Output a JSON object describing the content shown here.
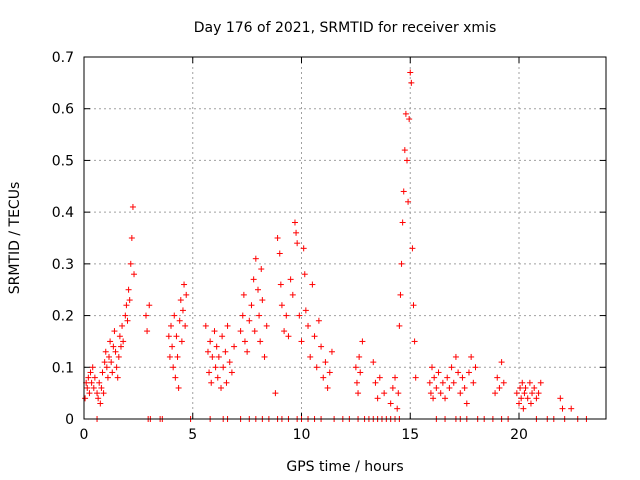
{
  "chart_data": {
    "type": "scatter",
    "title": "Day 176 of 2021, SRMTID for receiver xmis",
    "xlabel": "GPS time / hours",
    "ylabel": "SRMTID / TECUs",
    "xlim": [
      0,
      24
    ],
    "ylim": [
      0,
      0.7
    ],
    "xticks": [
      0,
      5,
      10,
      15,
      20
    ],
    "yticks": [
      0,
      0.1,
      0.2,
      0.3,
      0.4,
      0.5,
      0.6,
      0.7
    ],
    "xtick_labels": [
      "0",
      "5",
      "10",
      "15",
      "20"
    ],
    "ytick_labels": [
      "0",
      "0.1",
      "0.2",
      "0.3",
      "0.4",
      "0.5",
      "0.6",
      "0.7"
    ],
    "grid": true,
    "marker": "+",
    "color": "#ff0000",
    "series": [
      {
        "name": "SRMTID",
        "points": [
          [
            0.05,
            0.04
          ],
          [
            0.1,
            0.07
          ],
          [
            0.15,
            0.06
          ],
          [
            0.2,
            0.08
          ],
          [
            0.25,
            0.05
          ],
          [
            0.3,
            0.09
          ],
          [
            0.35,
            0.07
          ],
          [
            0.4,
            0.1
          ],
          [
            0.45,
            0.06
          ],
          [
            0.5,
            0.08
          ],
          [
            0.6,
            0.05
          ],
          [
            0.65,
            0.04
          ],
          [
            0.7,
            0.07
          ],
          [
            0.75,
            0.03
          ],
          [
            0.8,
            0.06
          ],
          [
            0.85,
            0.09
          ],
          [
            0.9,
            0.05
          ],
          [
            0.95,
            0.11
          ],
          [
            1.0,
            0.13
          ],
          [
            1.05,
            0.1
          ],
          [
            1.1,
            0.08
          ],
          [
            1.15,
            0.12
          ],
          [
            1.2,
            0.15
          ],
          [
            1.25,
            0.11
          ],
          [
            1.3,
            0.09
          ],
          [
            1.35,
            0.14
          ],
          [
            1.4,
            0.17
          ],
          [
            1.45,
            0.13
          ],
          [
            1.5,
            0.1
          ],
          [
            1.55,
            0.08
          ],
          [
            1.6,
            0.12
          ],
          [
            1.65,
            0.16
          ],
          [
            1.7,
            0.14
          ],
          [
            1.75,
            0.18
          ],
          [
            1.8,
            0.15
          ],
          [
            1.9,
            0.2
          ],
          [
            1.95,
            0.22
          ],
          [
            2.0,
            0.19
          ],
          [
            2.05,
            0.25
          ],
          [
            2.1,
            0.23
          ],
          [
            2.15,
            0.3
          ],
          [
            2.2,
            0.35
          ],
          [
            2.25,
            0.41
          ],
          [
            2.3,
            0.28
          ],
          [
            2.85,
            0.2
          ],
          [
            2.9,
            0.17
          ],
          [
            3.0,
            0.22
          ],
          [
            3.9,
            0.16
          ],
          [
            3.95,
            0.12
          ],
          [
            4.0,
            0.18
          ],
          [
            4.05,
            0.14
          ],
          [
            4.1,
            0.1
          ],
          [
            4.15,
            0.2
          ],
          [
            4.2,
            0.08
          ],
          [
            4.25,
            0.16
          ],
          [
            4.3,
            0.12
          ],
          [
            4.35,
            0.06
          ],
          [
            4.4,
            0.19
          ],
          [
            4.45,
            0.23
          ],
          [
            4.5,
            0.15
          ],
          [
            4.55,
            0.21
          ],
          [
            4.6,
            0.26
          ],
          [
            4.65,
            0.18
          ],
          [
            4.7,
            0.24
          ],
          [
            5.6,
            0.18
          ],
          [
            5.7,
            0.13
          ],
          [
            5.75,
            0.09
          ],
          [
            5.8,
            0.15
          ],
          [
            5.85,
            0.07
          ],
          [
            5.9,
            0.12
          ],
          [
            6.0,
            0.17
          ],
          [
            6.05,
            0.1
          ],
          [
            6.1,
            0.14
          ],
          [
            6.15,
            0.08
          ],
          [
            6.2,
            0.12
          ],
          [
            6.3,
            0.06
          ],
          [
            6.35,
            0.16
          ],
          [
            6.4,
            0.1
          ],
          [
            6.5,
            0.13
          ],
          [
            6.55,
            0.07
          ],
          [
            6.6,
            0.18
          ],
          [
            6.7,
            0.11
          ],
          [
            6.8,
            0.09
          ],
          [
            6.9,
            0.14
          ],
          [
            7.2,
            0.17
          ],
          [
            7.3,
            0.2
          ],
          [
            7.35,
            0.24
          ],
          [
            7.4,
            0.15
          ],
          [
            7.5,
            0.13
          ],
          [
            7.6,
            0.19
          ],
          [
            7.7,
            0.22
          ],
          [
            7.8,
            0.27
          ],
          [
            7.85,
            0.17
          ],
          [
            7.9,
            0.31
          ],
          [
            8.0,
            0.25
          ],
          [
            8.05,
            0.2
          ],
          [
            8.1,
            0.15
          ],
          [
            8.15,
            0.29
          ],
          [
            8.2,
            0.23
          ],
          [
            8.3,
            0.12
          ],
          [
            8.4,
            0.18
          ],
          [
            8.8,
            0.05
          ],
          [
            8.9,
            0.35
          ],
          [
            9.0,
            0.32
          ],
          [
            9.05,
            0.26
          ],
          [
            9.1,
            0.22
          ],
          [
            9.2,
            0.17
          ],
          [
            9.3,
            0.2
          ],
          [
            9.4,
            0.16
          ],
          [
            9.5,
            0.27
          ],
          [
            9.6,
            0.24
          ],
          [
            9.7,
            0.38
          ],
          [
            9.75,
            0.36
          ],
          [
            9.8,
            0.34
          ],
          [
            9.9,
            0.2
          ],
          [
            10.0,
            0.15
          ],
          [
            10.1,
            0.33
          ],
          [
            10.15,
            0.28
          ],
          [
            10.2,
            0.21
          ],
          [
            10.3,
            0.18
          ],
          [
            10.4,
            0.12
          ],
          [
            10.5,
            0.26
          ],
          [
            10.6,
            0.16
          ],
          [
            10.7,
            0.1
          ],
          [
            10.8,
            0.19
          ],
          [
            10.9,
            0.14
          ],
          [
            11.0,
            0.08
          ],
          [
            11.1,
            0.11
          ],
          [
            11.2,
            0.06
          ],
          [
            11.3,
            0.09
          ],
          [
            11.4,
            0.13
          ],
          [
            12.5,
            0.1
          ],
          [
            12.55,
            0.07
          ],
          [
            12.6,
            0.05
          ],
          [
            12.65,
            0.12
          ],
          [
            12.7,
            0.09
          ],
          [
            12.8,
            0.15
          ],
          [
            13.3,
            0.11
          ],
          [
            13.4,
            0.07
          ],
          [
            13.5,
            0.04
          ],
          [
            13.6,
            0.08
          ],
          [
            13.8,
            0.05
          ],
          [
            14.1,
            0.03
          ],
          [
            14.2,
            0.06
          ],
          [
            14.3,
            0.08
          ],
          [
            14.4,
            0.02
          ],
          [
            14.45,
            0.05
          ],
          [
            14.5,
            0.18
          ],
          [
            14.55,
            0.24
          ],
          [
            14.6,
            0.3
          ],
          [
            14.65,
            0.38
          ],
          [
            14.7,
            0.44
          ],
          [
            14.75,
            0.52
          ],
          [
            14.8,
            0.59
          ],
          [
            14.85,
            0.5
          ],
          [
            14.9,
            0.42
          ],
          [
            14.95,
            0.58
          ],
          [
            15.0,
            0.67
          ],
          [
            15.05,
            0.65
          ],
          [
            15.1,
            0.33
          ],
          [
            15.15,
            0.22
          ],
          [
            15.2,
            0.15
          ],
          [
            15.25,
            0.08
          ],
          [
            15.9,
            0.07
          ],
          [
            15.95,
            0.05
          ],
          [
            16.0,
            0.1
          ],
          [
            16.05,
            0.04
          ],
          [
            16.1,
            0.08
          ],
          [
            16.2,
            0.06
          ],
          [
            16.3,
            0.09
          ],
          [
            16.4,
            0.05
          ],
          [
            16.5,
            0.07
          ],
          [
            16.6,
            0.04
          ],
          [
            16.7,
            0.08
          ],
          [
            16.8,
            0.06
          ],
          [
            16.9,
            0.1
          ],
          [
            17.0,
            0.07
          ],
          [
            17.1,
            0.12
          ],
          [
            17.2,
            0.09
          ],
          [
            17.3,
            0.05
          ],
          [
            17.4,
            0.08
          ],
          [
            17.5,
            0.06
          ],
          [
            17.6,
            0.03
          ],
          [
            17.7,
            0.09
          ],
          [
            17.8,
            0.12
          ],
          [
            17.9,
            0.07
          ],
          [
            18.0,
            0.1
          ],
          [
            18.9,
            0.05
          ],
          [
            19.0,
            0.08
          ],
          [
            19.1,
            0.06
          ],
          [
            19.2,
            0.11
          ],
          [
            19.3,
            0.07
          ],
          [
            19.9,
            0.05
          ],
          [
            20.0,
            0.03
          ],
          [
            20.05,
            0.06
          ],
          [
            20.1,
            0.04
          ],
          [
            20.15,
            0.07
          ],
          [
            20.2,
            0.02
          ],
          [
            20.25,
            0.05
          ],
          [
            20.3,
            0.06
          ],
          [
            20.4,
            0.04
          ],
          [
            20.5,
            0.07
          ],
          [
            20.55,
            0.03
          ],
          [
            20.6,
            0.05
          ],
          [
            20.7,
            0.06
          ],
          [
            20.8,
            0.04
          ],
          [
            20.9,
            0.05
          ],
          [
            21.0,
            0.07
          ],
          [
            21.9,
            0.04
          ],
          [
            22.0,
            0.02
          ],
          [
            22.4,
            0.02
          ]
        ],
        "zero_points": [
          0.6,
          2.95,
          3.05,
          3.5,
          3.6,
          4.9,
          5.8,
          6.4,
          6.6,
          7.2,
          7.6,
          7.9,
          8.2,
          8.5,
          8.9,
          9.1,
          9.4,
          9.8,
          10.0,
          10.3,
          10.6,
          10.9,
          11.5,
          11.9,
          12.2,
          12.6,
          12.9,
          13.1,
          13.3,
          13.5,
          13.7,
          13.9,
          14.1,
          14.3,
          14.5,
          16.2,
          16.6,
          17.1,
          17.3,
          17.6,
          18.1,
          18.4,
          18.8,
          19.2,
          19.5,
          20.8,
          21.3,
          21.6,
          22.1,
          22.7,
          23.1
        ]
      }
    ]
  }
}
